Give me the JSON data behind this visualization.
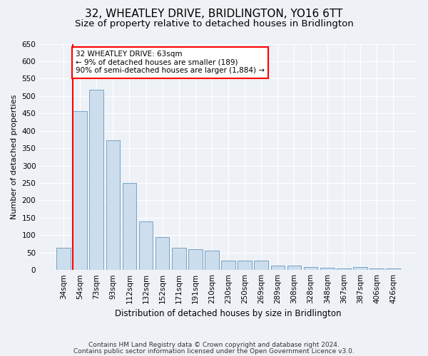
{
  "title": "32, WHEATLEY DRIVE, BRIDLINGTON, YO16 6TT",
  "subtitle": "Size of property relative to detached houses in Bridlington",
  "xlabel": "Distribution of detached houses by size in Bridlington",
  "ylabel": "Number of detached properties",
  "categories": [
    "34sqm",
    "54sqm",
    "73sqm",
    "93sqm",
    "112sqm",
    "132sqm",
    "152sqm",
    "171sqm",
    "191sqm",
    "210sqm",
    "230sqm",
    "250sqm",
    "269sqm",
    "289sqm",
    "308sqm",
    "328sqm",
    "348sqm",
    "367sqm",
    "387sqm",
    "406sqm",
    "426sqm"
  ],
  "values": [
    63,
    457,
    519,
    372,
    249,
    140,
    94,
    63,
    59,
    56,
    27,
    26,
    27,
    12,
    12,
    9,
    7,
    5,
    8,
    5,
    5
  ],
  "bar_color": "#ccdded",
  "bar_edgecolor": "#6699bb",
  "red_line_x": 0.575,
  "annotation_text": "32 WHEATLEY DRIVE: 63sqm\n← 9% of detached houses are smaller (189)\n90% of semi-detached houses are larger (1,884) →",
  "annotation_box_edgecolor": "red",
  "annotation_box_facecolor": "white",
  "red_line_color": "red",
  "ylim": [
    0,
    650
  ],
  "yticks": [
    0,
    50,
    100,
    150,
    200,
    250,
    300,
    350,
    400,
    450,
    500,
    550,
    600,
    650
  ],
  "footnote1": "Contains HM Land Registry data © Crown copyright and database right 2024.",
  "footnote2": "Contains public sector information licensed under the Open Government Licence v3.0.",
  "title_fontsize": 11,
  "subtitle_fontsize": 9.5,
  "xlabel_fontsize": 8.5,
  "ylabel_fontsize": 8,
  "tick_fontsize": 7.5,
  "annotation_fontsize": 7.5,
  "footnote_fontsize": 6.5,
  "background_color": "#eef2f7",
  "plot_background_color": "#eef2f7",
  "grid_color": "#ffffff"
}
